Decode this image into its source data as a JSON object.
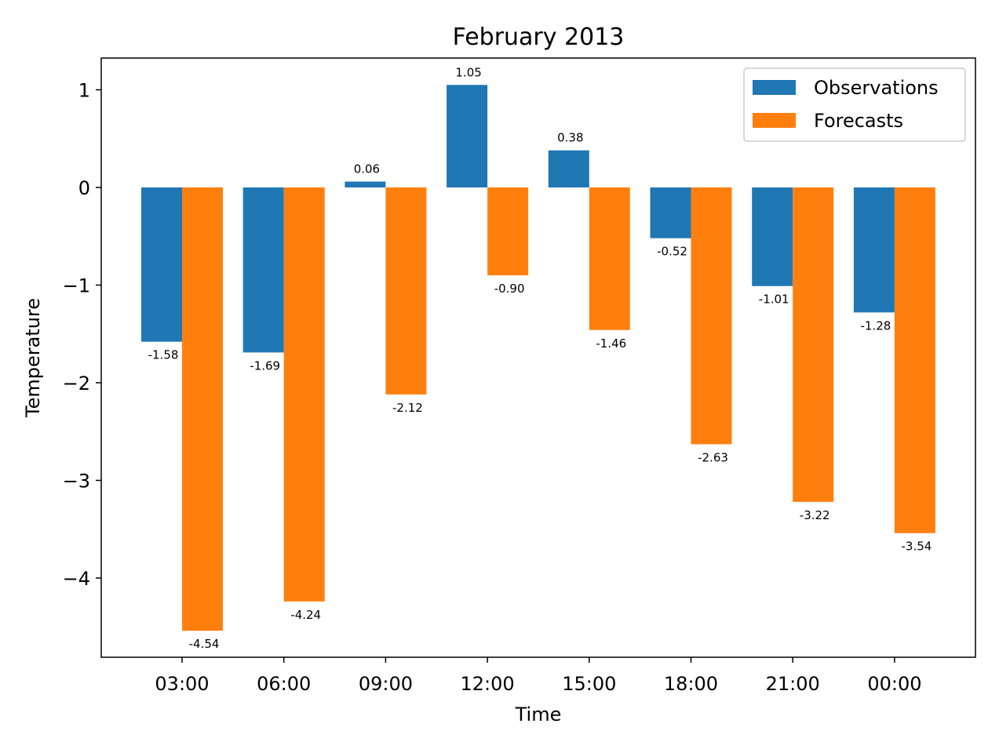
{
  "chart_data": {
    "type": "bar",
    "title": "February 2013",
    "xlabel": "Time",
    "ylabel": "Temperature",
    "categories": [
      "03:00",
      "06:00",
      "09:00",
      "12:00",
      "15:00",
      "18:00",
      "21:00",
      "00:00"
    ],
    "series": [
      {
        "name": "Observations",
        "color": "#1f77b4",
        "values": [
          -1.58,
          -1.69,
          0.06,
          1.05,
          0.38,
          -0.52,
          -1.01,
          -1.28
        ]
      },
      {
        "name": "Forecasts",
        "color": "#ff7f0e",
        "values": [
          -4.54,
          -4.24,
          -2.12,
          -0.9,
          -1.46,
          -2.63,
          -3.22,
          -3.54
        ]
      }
    ],
    "yticks": [
      "1",
      "0",
      "−1",
      "−2",
      "−3",
      "−4"
    ],
    "ytick_values": [
      1,
      0,
      -1,
      -2,
      -3,
      -4
    ],
    "ylim": [
      -4.8,
      1.33
    ],
    "legend_position": "upper right",
    "grid": false
  }
}
